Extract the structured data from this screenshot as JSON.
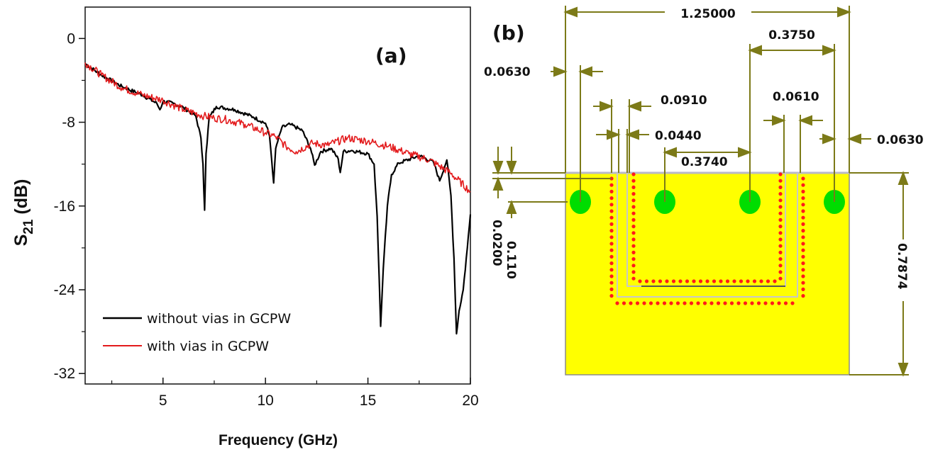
{
  "panel_a": {
    "label": "(a)",
    "chart_data": {
      "type": "line",
      "title": "",
      "xlabel": "Frequency (GHz)",
      "ylabel_main": "S",
      "ylabel_sub": "21",
      "ylabel_unit": " (dB)",
      "xlim": [
        1.2,
        20
      ],
      "ylim": [
        -33,
        3
      ],
      "x_ticks": [
        5,
        10,
        15,
        20
      ],
      "y_ticks": [
        0,
        -8,
        -16,
        -24,
        -32
      ],
      "grid": false,
      "legend_position": "bottom-left",
      "series": [
        {
          "name": "without vias in GCPW",
          "color": "#000000",
          "points": [
            [
              1.2,
              -2.4
            ],
            [
              2,
              -3.5
            ],
            [
              3,
              -4.6
            ],
            [
              4,
              -5.4
            ],
            [
              4.7,
              -6.2
            ],
            [
              4.85,
              -6.8
            ],
            [
              5,
              -6.0
            ],
            [
              5.5,
              -6.2
            ],
            [
              6,
              -6.6
            ],
            [
              6.6,
              -7.4
            ],
            [
              6.85,
              -9.5
            ],
            [
              6.95,
              -12
            ],
            [
              7.03,
              -16.4
            ],
            [
              7.1,
              -11
            ],
            [
              7.25,
              -7.6
            ],
            [
              7.6,
              -6.5
            ],
            [
              8.5,
              -6.8
            ],
            [
              9.4,
              -7.5
            ],
            [
              10,
              -8.1
            ],
            [
              10.2,
              -9.3
            ],
            [
              10.3,
              -11.5
            ],
            [
              10.4,
              -13.8
            ],
            [
              10.5,
              -10.5
            ],
            [
              10.8,
              -8.5
            ],
            [
              11.2,
              -8.2
            ],
            [
              11.8,
              -8.8
            ],
            [
              12.2,
              -10.5
            ],
            [
              12.4,
              -12.1
            ],
            [
              12.7,
              -10.8
            ],
            [
              13.2,
              -10.5
            ],
            [
              13.55,
              -11.5
            ],
            [
              13.65,
              -12.8
            ],
            [
              13.8,
              -10.8
            ],
            [
              14.2,
              -10.7
            ],
            [
              15.0,
              -11.0
            ],
            [
              15.3,
              -12.0
            ],
            [
              15.45,
              -17.0
            ],
            [
              15.55,
              -23.0
            ],
            [
              15.62,
              -27.5
            ],
            [
              15.75,
              -22.0
            ],
            [
              15.95,
              -16.0
            ],
            [
              16.15,
              -13.0
            ],
            [
              16.5,
              -11.9
            ],
            [
              17.5,
              -11.2
            ],
            [
              18.2,
              -11.8
            ],
            [
              18.5,
              -13.6
            ],
            [
              18.85,
              -11.6
            ],
            [
              19.05,
              -15.0
            ],
            [
              19.2,
              -21.0
            ],
            [
              19.32,
              -28.2
            ],
            [
              19.45,
              -26.0
            ],
            [
              19.65,
              -24.0
            ],
            [
              19.85,
              -20.0
            ],
            [
              20,
              -16.8
            ]
          ]
        },
        {
          "name": "with vias in GCPW",
          "color": "#e31a1c",
          "points": [
            [
              1.2,
              -2.3
            ],
            [
              2,
              -3.5
            ],
            [
              3,
              -4.7
            ],
            [
              4,
              -5.4
            ],
            [
              5,
              -5.9
            ],
            [
              6,
              -6.8
            ],
            [
              7,
              -7.4
            ],
            [
              7.5,
              -7.6
            ],
            [
              8,
              -7.7
            ],
            [
              9,
              -8.2
            ],
            [
              10,
              -9.0
            ],
            [
              10.5,
              -9.4
            ],
            [
              11,
              -10.3
            ],
            [
              11.5,
              -10.8
            ],
            [
              12.3,
              -10.0
            ],
            [
              13,
              -10.2
            ],
            [
              14,
              -9.5
            ],
            [
              15,
              -9.8
            ],
            [
              16,
              -10.3
            ],
            [
              17,
              -11.0
            ],
            [
              18,
              -11.6
            ],
            [
              19,
              -12.8
            ],
            [
              20,
              -14.6
            ]
          ]
        }
      ]
    }
  },
  "panel_b": {
    "label": "(b)",
    "colors": {
      "board": "#ffff00",
      "via_large": "#00dd00",
      "via_small": "#ff1a1a",
      "dimension": "#7c7a18"
    },
    "dimensions": {
      "total_width": "1.25000",
      "slot_span": "0.3750",
      "edge_via_left": "0.0630",
      "line_gap": "0.0910",
      "gap_right": "0.0610",
      "trace": "0.0440",
      "edge_via_right": "0.0630",
      "center_spacing": "0.3740",
      "via_offset": "0.110",
      "top_offset": "0.0200",
      "height": "0.7874"
    }
  }
}
